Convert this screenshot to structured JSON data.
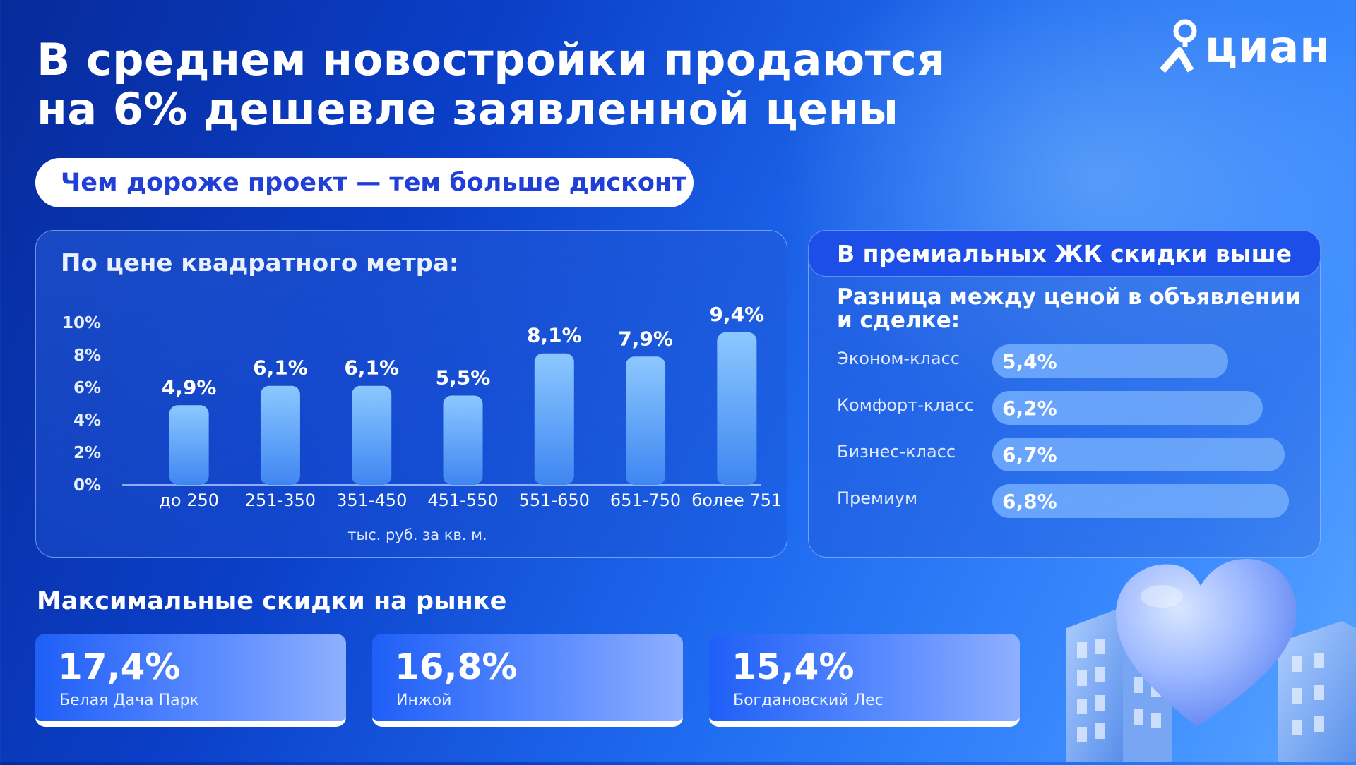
{
  "headline": {
    "line1": "В среднем новостройки продаются",
    "line2": "на 6% дешевле заявленной цены"
  },
  "logo": {
    "text": "циан",
    "icon": "cian-person-pin-icon"
  },
  "pill": {
    "text": "Чем дороже проект — тем больше дисконт"
  },
  "left_card": {
    "title": "По цене квадратного метра:"
  },
  "chart_data": [
    {
      "type": "bar",
      "categories": [
        "до 250",
        "251-350",
        "351-450",
        "451-550",
        "551-650",
        "651-750",
        "более 751"
      ],
      "values": [
        4.9,
        6.1,
        6.1,
        5.5,
        8.1,
        7.9,
        9.4
      ],
      "value_labels": [
        "4,9%",
        "6,1%",
        "6,1%",
        "5,5%",
        "8,1%",
        "7,9%",
        "9,4%"
      ],
      "yticks": [
        "0%",
        "2%",
        "4%",
        "6%",
        "8%",
        "10%"
      ],
      "ylim": [
        0,
        10
      ],
      "xlabel": "тыс. руб. за кв. м.",
      "ylabel": "",
      "title": "По цене квадратного метра:",
      "grid": false
    },
    {
      "type": "bar",
      "orientation": "horizontal",
      "title": "В премиальных ЖК скидки выше",
      "subtitle": "Разница между ценой в объявлении и сделке:",
      "categories": [
        "Эконом-класс",
        "Комфорт-класс",
        "Бизнес-класс",
        "Премиум"
      ],
      "values": [
        5.4,
        6.2,
        6.7,
        6.8
      ],
      "value_labels": [
        "5,4%",
        "6,2%",
        "6,7%",
        "6,8%"
      ]
    }
  ],
  "right_card": {
    "title": "В премиальных ЖК скидки выше",
    "subtitle_line1": "Разница между ценой в объявлении",
    "subtitle_line2": "и сделке:",
    "rows": [
      {
        "label": "Эконом-класс",
        "value": "5,4%"
      },
      {
        "label": "Комфорт-класс",
        "value": "6,2%"
      },
      {
        "label": "Бизнес-класс",
        "value": "6,7%"
      },
      {
        "label": "Премиум",
        "value": "6,8%"
      }
    ]
  },
  "max_discounts": {
    "title": "Максимальные скидки на рынке",
    "items": [
      {
        "value": "17,4%",
        "name": "Белая Дача Парк"
      },
      {
        "value": "16,8%",
        "name": "Инжой"
      },
      {
        "value": "15,4%",
        "name": "Богдановский Лес"
      }
    ]
  },
  "decor": {
    "icons": [
      "heart-icon",
      "building-icon"
    ]
  },
  "colors": {
    "bg_dark": "#072a9a",
    "bg_light": "#5aa6ff",
    "accent": "#1f3fd6",
    "bar_top": "#8cc8ff",
    "bar_bottom": "#3f86f2"
  }
}
